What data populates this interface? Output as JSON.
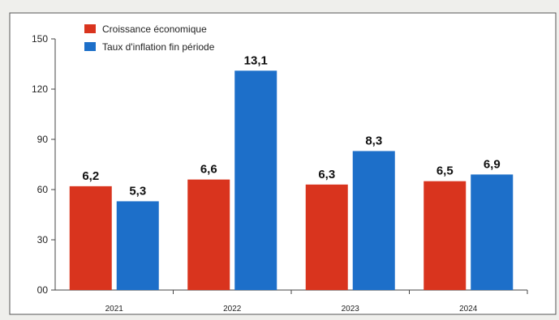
{
  "chart_data": {
    "type": "bar",
    "categories": [
      "2021",
      "2022",
      "2023",
      "2024"
    ],
    "series": [
      {
        "name": "Croissance économique",
        "color": "#d9341e",
        "values": [
          62,
          66,
          63,
          65
        ],
        "labels": [
          "6,2",
          "6,6",
          "6,3",
          "6,5"
        ]
      },
      {
        "name": "Taux d'inflation fin période",
        "color": "#1d6fc9",
        "values": [
          53,
          131,
          83,
          69
        ],
        "labels": [
          "5,3",
          "13,1",
          "8,3",
          "6,9"
        ]
      }
    ],
    "yticks": [
      "00",
      "30",
      "60",
      "90",
      "120",
      "150"
    ],
    "ylim": [
      0,
      150
    ],
    "grid": false,
    "legend_position": "top-left"
  }
}
